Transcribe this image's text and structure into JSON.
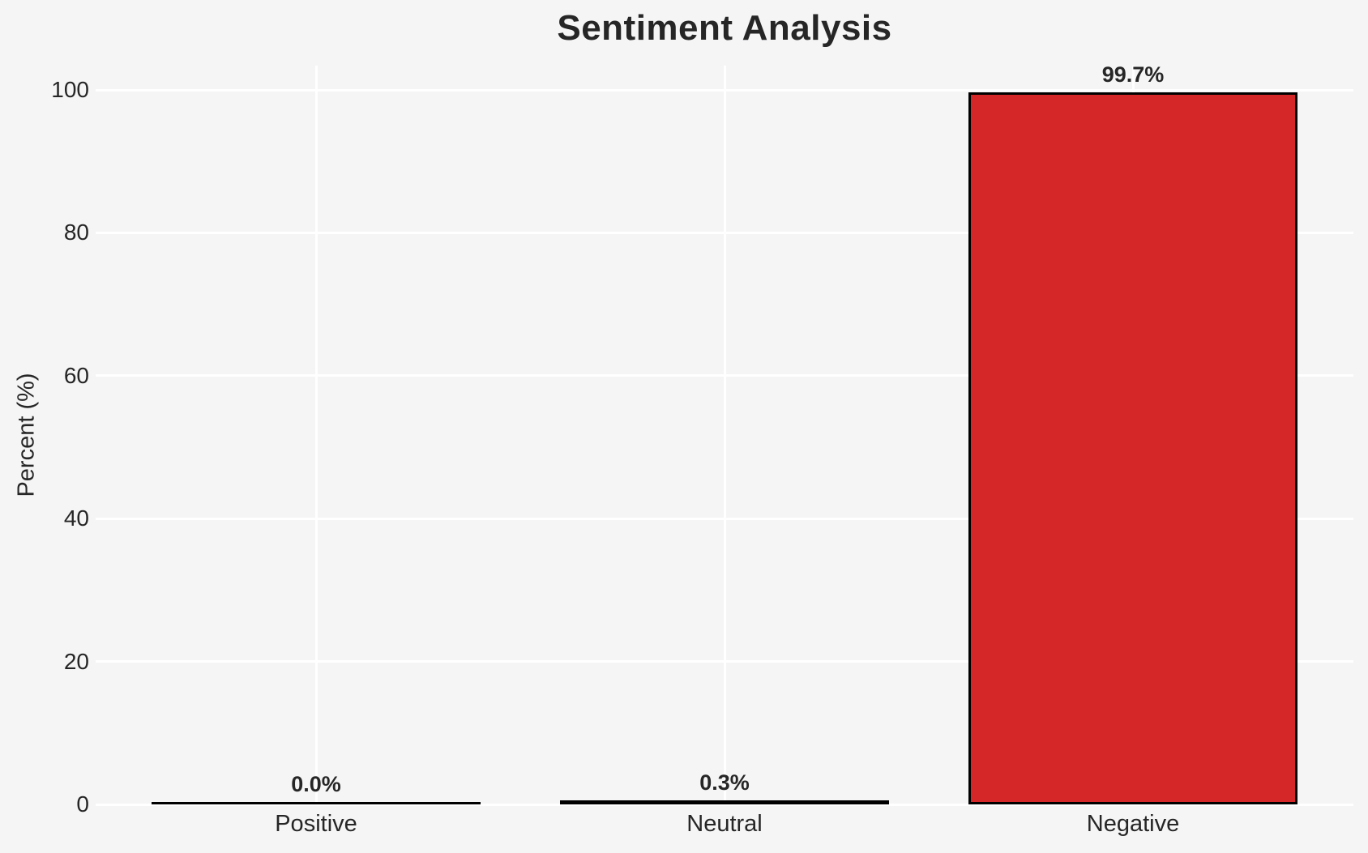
{
  "chart_data": {
    "type": "bar",
    "title": "Sentiment Analysis",
    "xlabel": "",
    "ylabel": "Percent (%)",
    "categories": [
      "Positive",
      "Neutral",
      "Negative"
    ],
    "values": [
      0.0,
      0.3,
      99.7
    ],
    "value_labels": [
      "0.0%",
      "0.3%",
      "99.7%"
    ],
    "yticks": [
      0,
      20,
      40,
      60,
      80,
      100
    ],
    "ytick_labels": [
      "0",
      "20",
      "40",
      "60",
      "80",
      "100"
    ],
    "ylim": [
      0,
      103
    ],
    "grid": true,
    "legend": false,
    "colors": {
      "background": "#f5f5f6",
      "gridline": "#ffffff",
      "bar_fill": "#d62728",
      "bar_edge": "#000000",
      "text": "#262626"
    }
  }
}
